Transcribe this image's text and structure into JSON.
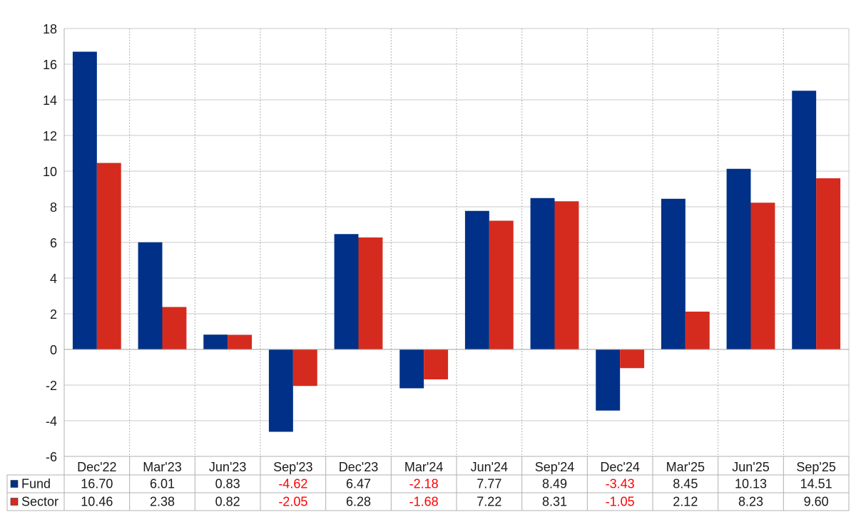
{
  "chart_data": {
    "type": "bar",
    "categories": [
      "Dec'22",
      "Mar'23",
      "Jun'23",
      "Sep'23",
      "Dec'23",
      "Mar'24",
      "Jun'24",
      "Sep'24",
      "Dec'24",
      "Mar'25",
      "Jun'25",
      "Sep'25"
    ],
    "series": [
      {
        "name": "Fund",
        "color": "#003087",
        "values": [
          16.7,
          6.01,
          0.83,
          -4.62,
          6.47,
          -2.18,
          7.77,
          8.49,
          -3.43,
          8.45,
          10.13,
          14.51
        ],
        "labels": [
          "16.70",
          "6.01",
          "0.83",
          "-4.62",
          "6.47",
          "-2.18",
          "7.77",
          "8.49",
          "-3.43",
          "8.45",
          "10.13",
          "14.51"
        ]
      },
      {
        "name": "Sector",
        "color": "#d52b1e",
        "values": [
          10.46,
          2.38,
          0.82,
          -2.05,
          6.28,
          -1.68,
          7.22,
          8.31,
          -1.05,
          2.12,
          8.23,
          9.6
        ],
        "labels": [
          "10.46",
          "2.38",
          "0.82",
          "-2.05",
          "6.28",
          "-1.68",
          "7.22",
          "8.31",
          "-1.05",
          "2.12",
          "8.23",
          "9.60"
        ]
      }
    ],
    "ylim": [
      -6,
      18
    ],
    "yticks": [
      "-6",
      "-4",
      "-2",
      "0",
      "2",
      "4",
      "6",
      "8",
      "10",
      "12",
      "14",
      "16",
      "18"
    ],
    "negative_label_color": "#ff0000",
    "grid": true,
    "legend": "data-table-bottom"
  }
}
